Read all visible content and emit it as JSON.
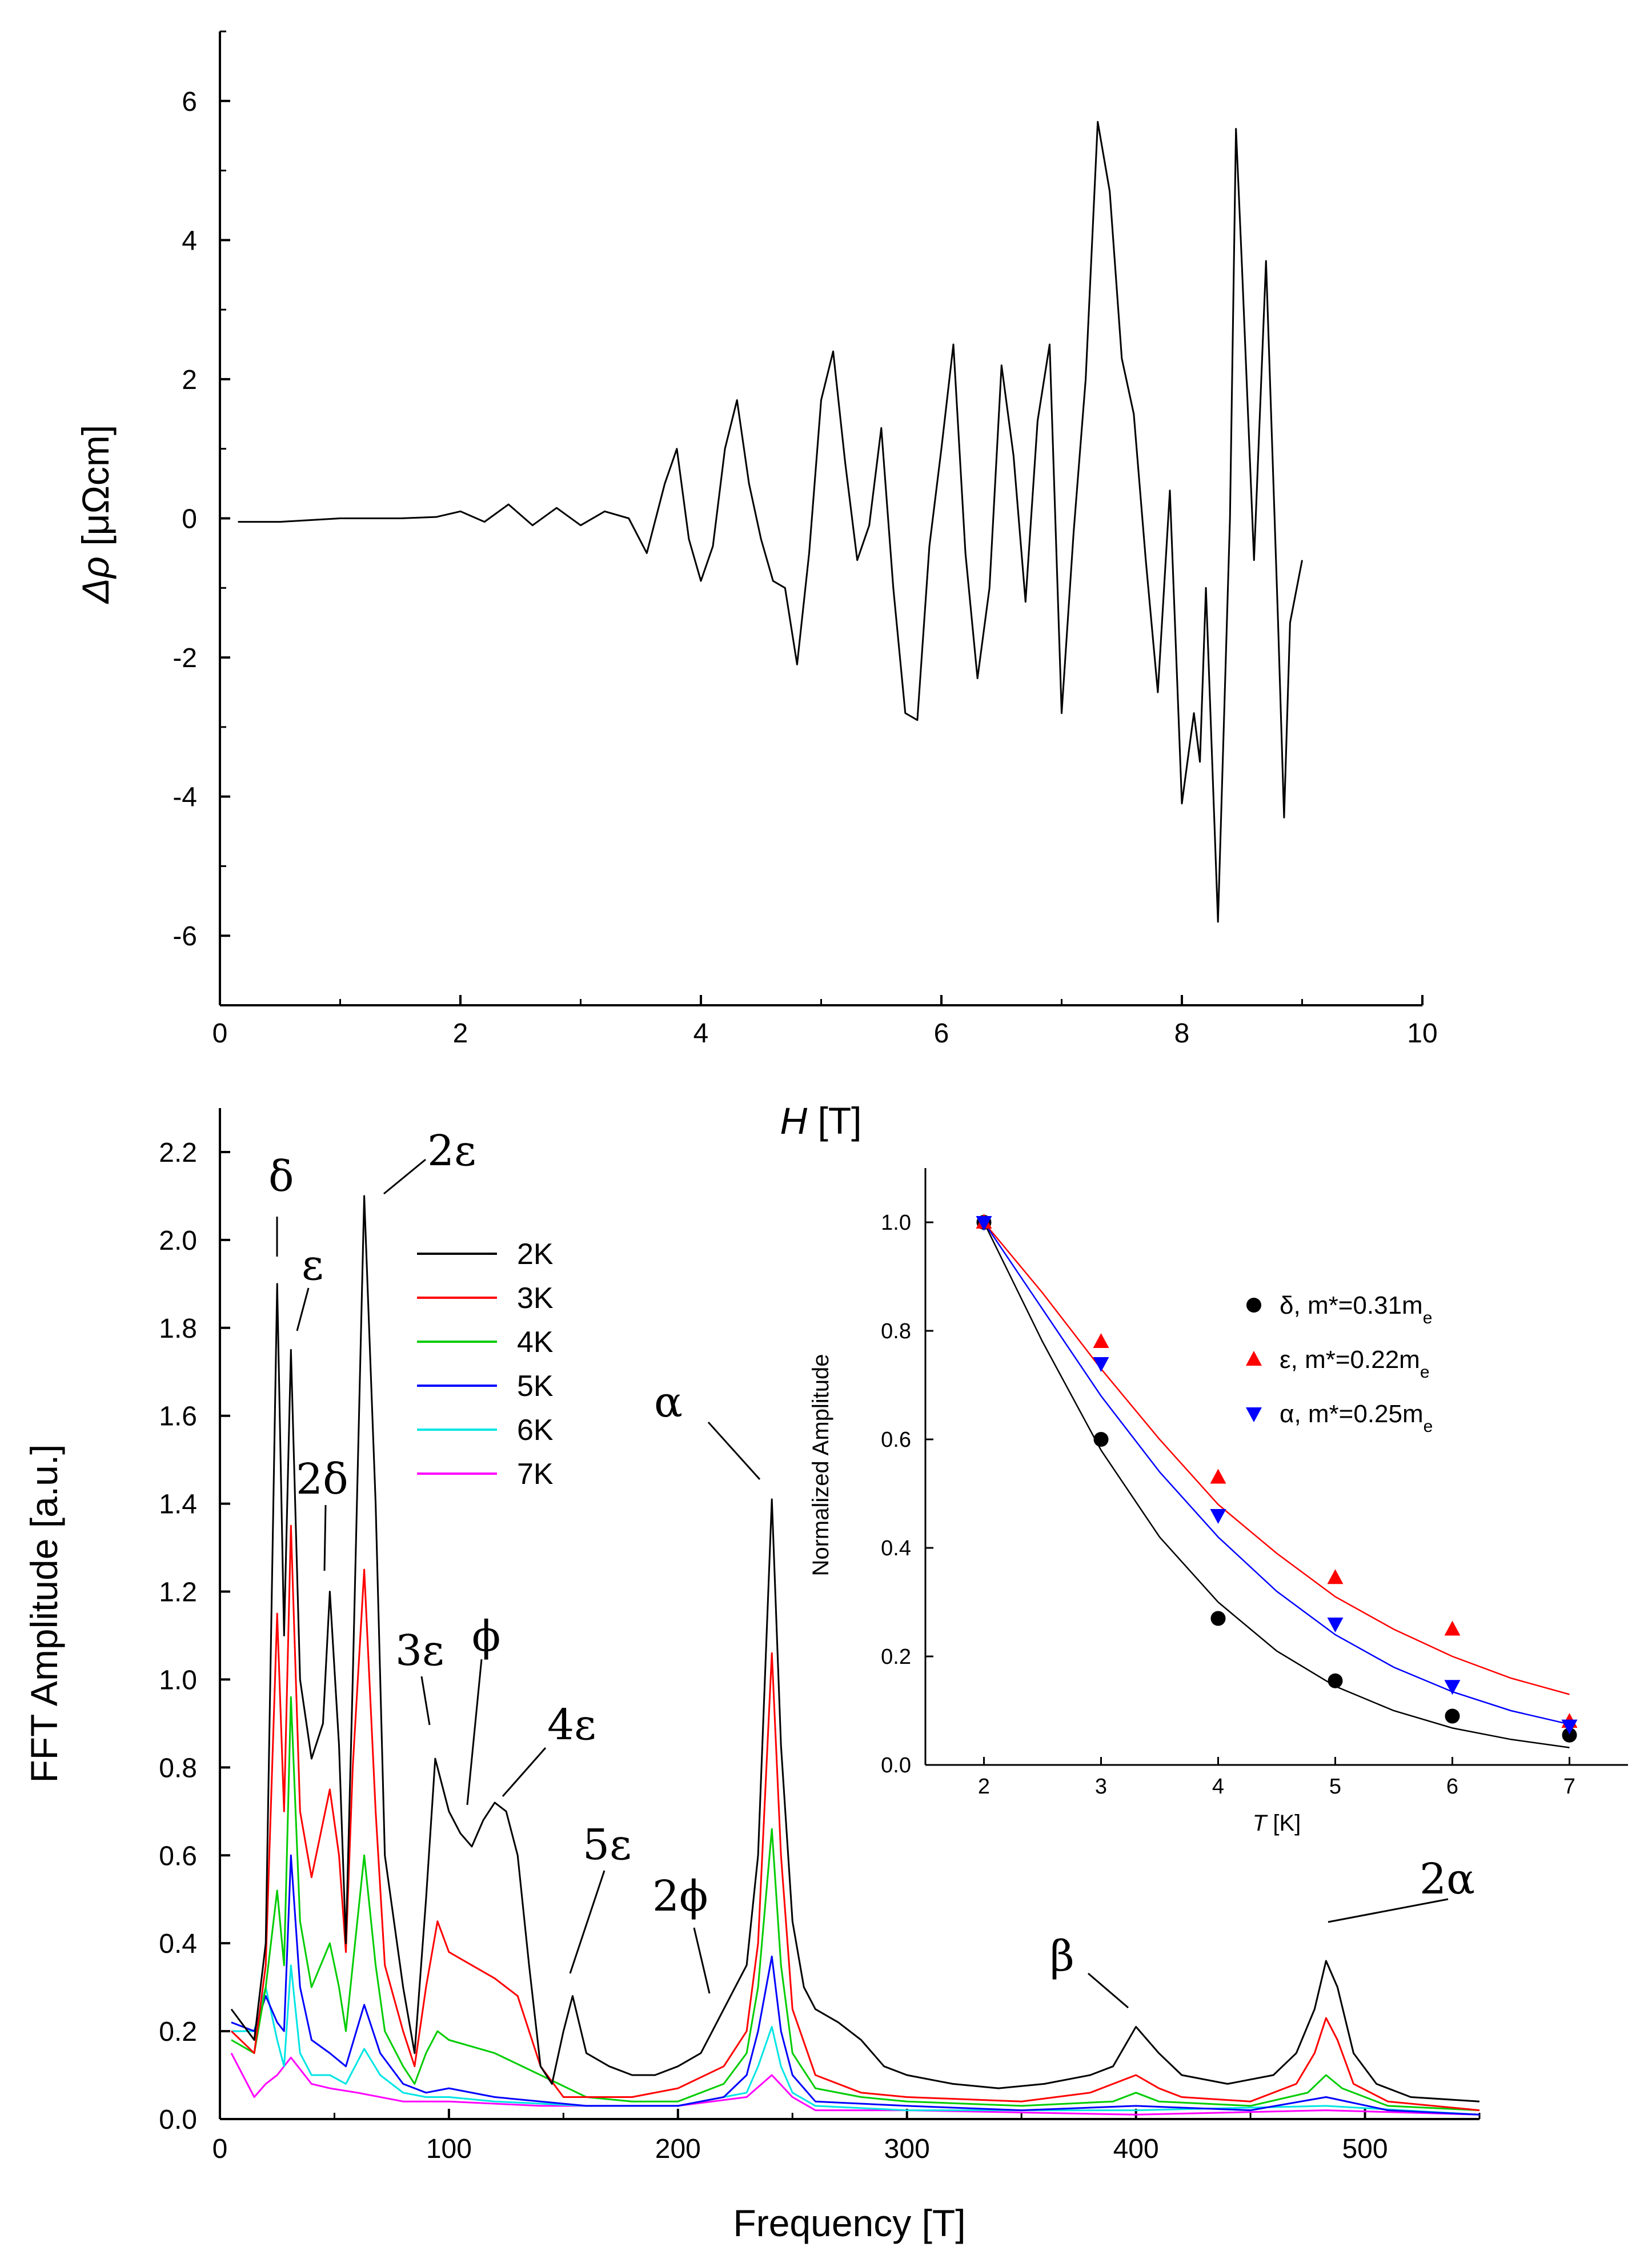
{
  "chart_data": [
    {
      "id": "top",
      "type": "line",
      "xlabel_italic": "H",
      "xlabel_unit": "[T]",
      "ylabel_symbol": "Δρ",
      "ylabel_unit": "[μΩcm]",
      "xlim": [
        0,
        10
      ],
      "ylim": [
        -7,
        7
      ],
      "xticks": [
        "0",
        "2",
        "4",
        "6",
        "8",
        "10"
      ],
      "yticks": [
        "6",
        "4",
        "2",
        "0",
        "-2",
        "-4",
        "-6"
      ],
      "series": [
        {
          "name": "Δρ(H)",
          "color": "#000000",
          "x": [
            0.15,
            0.5,
            1.0,
            1.5,
            1.8,
            2.0,
            2.2,
            2.4,
            2.6,
            2.8,
            3.0,
            3.2,
            3.4,
            3.55,
            3.7,
            3.8,
            3.9,
            4.0,
            4.1,
            4.2,
            4.3,
            4.4,
            4.5,
            4.6,
            4.7,
            4.8,
            4.9,
            5.0,
            5.1,
            5.2,
            5.3,
            5.4,
            5.5,
            5.6,
            5.7,
            5.8,
            5.9,
            6.0,
            6.1,
            6.2,
            6.3,
            6.4,
            6.5,
            6.6,
            6.7,
            6.8,
            6.9,
            7.0,
            7.1,
            7.2,
            7.3,
            7.4,
            7.5,
            7.6,
            7.7,
            7.8,
            7.9,
            8.0,
            8.1,
            8.15,
            8.2,
            8.3,
            8.4,
            8.45,
            8.5,
            8.6,
            8.7,
            8.8,
            8.85,
            8.9,
            9.0
          ],
          "y": [
            -0.05,
            -0.05,
            0.0,
            0.0,
            0.02,
            0.1,
            -0.05,
            0.2,
            -0.1,
            0.15,
            -0.1,
            0.1,
            0.0,
            -0.5,
            0.5,
            1.0,
            -0.3,
            -0.9,
            -0.4,
            1.0,
            1.7,
            0.5,
            -0.3,
            -0.9,
            -1.0,
            -2.1,
            -0.5,
            1.7,
            2.4,
            0.8,
            -0.6,
            -0.1,
            1.3,
            -1.0,
            -2.8,
            -2.9,
            -0.4,
            1.0,
            2.5,
            -0.5,
            -2.3,
            -1.0,
            2.2,
            0.9,
            -1.2,
            1.4,
            2.5,
            -2.8,
            -0.2,
            2.0,
            5.7,
            4.7,
            2.3,
            1.5,
            -0.6,
            -2.5,
            0.4,
            -4.1,
            -2.8,
            -3.5,
            -1.0,
            -5.8,
            0.0,
            5.6,
            3.6,
            -0.6,
            3.7,
            -1.5,
            -4.3,
            -1.5,
            -0.6
          ]
        }
      ]
    },
    {
      "id": "bottom",
      "type": "line",
      "xlabel": "Frequency [T]",
      "ylabel": "FFT Amplitude [a.u.]",
      "xlim": [
        0,
        550
      ],
      "ylim": [
        0,
        2.3
      ],
      "xticks": [
        "0",
        "100",
        "200",
        "300",
        "400",
        "500"
      ],
      "yticks": [
        "0.0",
        "0.2",
        "0.4",
        "0.6",
        "0.8",
        "1.0",
        "1.2",
        "1.4",
        "1.6",
        "1.8",
        "2.0",
        "2.2"
      ],
      "legend": [
        "2K",
        "3K",
        "4K",
        "5K",
        "6K",
        "7K"
      ],
      "peak_labels": [
        "δ",
        "ε",
        "2ε",
        "2δ",
        "3ε",
        "ϕ",
        "4ε",
        "5ε",
        "2ϕ",
        "α",
        "β",
        "2α"
      ],
      "peak_positions_T": [
        25,
        31,
        63,
        48,
        94,
        110,
        125,
        154,
        215,
        241,
        400,
        483
      ],
      "series": [
        {
          "name": "2K",
          "color": "#000000",
          "x": [
            5,
            15,
            20,
            25,
            28,
            31,
            35,
            40,
            45,
            48,
            52,
            55,
            58,
            63,
            68,
            72,
            80,
            85,
            90,
            94,
            100,
            105,
            110,
            115,
            120,
            125,
            130,
            135,
            140,
            145,
            150,
            154,
            160,
            170,
            180,
            190,
            200,
            210,
            215,
            220,
            225,
            230,
            235,
            241,
            245,
            250,
            255,
            260,
            270,
            280,
            290,
            300,
            320,
            340,
            360,
            380,
            390,
            400,
            410,
            420,
            440,
            460,
            470,
            478,
            483,
            488,
            495,
            505,
            520,
            550
          ],
          "y": [
            0.25,
            0.18,
            0.4,
            1.9,
            1.1,
            1.75,
            1.0,
            0.82,
            0.9,
            1.2,
            0.85,
            0.4,
            1.0,
            2.1,
            1.4,
            0.6,
            0.3,
            0.15,
            0.5,
            0.82,
            0.7,
            0.65,
            0.62,
            0.68,
            0.72,
            0.7,
            0.6,
            0.35,
            0.12,
            0.08,
            0.2,
            0.28,
            0.15,
            0.12,
            0.1,
            0.1,
            0.12,
            0.15,
            0.2,
            0.25,
            0.3,
            0.35,
            0.6,
            1.41,
            0.85,
            0.45,
            0.3,
            0.25,
            0.22,
            0.18,
            0.12,
            0.1,
            0.08,
            0.07,
            0.08,
            0.1,
            0.12,
            0.21,
            0.15,
            0.1,
            0.08,
            0.1,
            0.15,
            0.25,
            0.36,
            0.3,
            0.15,
            0.08,
            0.05,
            0.04
          ]
        },
        {
          "name": "3K",
          "color": "#ff0000",
          "x": [
            5,
            15,
            20,
            25,
            28,
            31,
            35,
            40,
            48,
            52,
            55,
            58,
            63,
            68,
            72,
            80,
            85,
            90,
            95,
            100,
            110,
            120,
            130,
            140,
            150,
            160,
            180,
            200,
            220,
            230,
            235,
            241,
            245,
            250,
            260,
            280,
            300,
            350,
            380,
            390,
            400,
            410,
            420,
            450,
            470,
            478,
            483,
            488,
            495,
            510,
            550
          ],
          "y": [
            0.2,
            0.15,
            0.35,
            1.15,
            0.7,
            1.35,
            0.7,
            0.55,
            0.75,
            0.6,
            0.38,
            0.8,
            1.25,
            0.7,
            0.35,
            0.2,
            0.12,
            0.3,
            0.45,
            0.38,
            0.35,
            0.32,
            0.28,
            0.12,
            0.05,
            0.05,
            0.05,
            0.07,
            0.12,
            0.2,
            0.4,
            1.06,
            0.6,
            0.25,
            0.1,
            0.06,
            0.05,
            0.04,
            0.06,
            0.08,
            0.1,
            0.07,
            0.05,
            0.04,
            0.08,
            0.15,
            0.23,
            0.18,
            0.08,
            0.04,
            0.02
          ]
        },
        {
          "name": "4K",
          "color": "#00cc00",
          "x": [
            5,
            15,
            20,
            25,
            28,
            31,
            35,
            40,
            48,
            52,
            55,
            58,
            63,
            68,
            72,
            80,
            85,
            90,
            95,
            100,
            120,
            140,
            160,
            180,
            200,
            220,
            230,
            235,
            241,
            245,
            250,
            260,
            280,
            300,
            350,
            390,
            400,
            410,
            450,
            475,
            483,
            490,
            510,
            550
          ],
          "y": [
            0.18,
            0.15,
            0.3,
            0.52,
            0.35,
            0.96,
            0.45,
            0.3,
            0.4,
            0.3,
            0.2,
            0.35,
            0.6,
            0.35,
            0.2,
            0.12,
            0.08,
            0.15,
            0.2,
            0.18,
            0.15,
            0.1,
            0.05,
            0.04,
            0.04,
            0.08,
            0.15,
            0.3,
            0.66,
            0.35,
            0.15,
            0.07,
            0.05,
            0.04,
            0.03,
            0.04,
            0.06,
            0.04,
            0.03,
            0.06,
            0.1,
            0.07,
            0.03,
            0.02
          ]
        },
        {
          "name": "5K",
          "color": "#0000ff",
          "x": [
            5,
            15,
            20,
            25,
            28,
            31,
            35,
            40,
            48,
            55,
            63,
            70,
            80,
            90,
            100,
            120,
            140,
            160,
            200,
            220,
            230,
            235,
            241,
            245,
            250,
            260,
            300,
            350,
            400,
            450,
            483,
            510,
            550
          ],
          "y": [
            0.22,
            0.2,
            0.28,
            0.22,
            0.2,
            0.6,
            0.3,
            0.18,
            0.15,
            0.12,
            0.26,
            0.15,
            0.08,
            0.06,
            0.07,
            0.05,
            0.04,
            0.03,
            0.03,
            0.05,
            0.1,
            0.2,
            0.37,
            0.2,
            0.1,
            0.04,
            0.03,
            0.02,
            0.03,
            0.02,
            0.05,
            0.02,
            0.01
          ]
        },
        {
          "name": "6K",
          "color": "#00e5e5",
          "x": [
            5,
            15,
            20,
            25,
            28,
            31,
            35,
            40,
            48,
            55,
            63,
            70,
            80,
            90,
            100,
            120,
            160,
            200,
            230,
            235,
            241,
            245,
            250,
            260,
            300,
            400,
            483,
            550
          ],
          "y": [
            0.2,
            0.2,
            0.3,
            0.18,
            0.12,
            0.35,
            0.15,
            0.1,
            0.1,
            0.08,
            0.16,
            0.1,
            0.06,
            0.05,
            0.05,
            0.04,
            0.03,
            0.03,
            0.06,
            0.12,
            0.21,
            0.12,
            0.06,
            0.03,
            0.02,
            0.02,
            0.03,
            0.01
          ]
        },
        {
          "name": "7K",
          "color": "#ff00ff",
          "x": [
            5,
            15,
            20,
            25,
            31,
            40,
            48,
            60,
            80,
            100,
            140,
            200,
            230,
            241,
            250,
            260,
            300,
            400,
            483,
            550
          ],
          "y": [
            0.15,
            0.05,
            0.08,
            0.1,
            0.14,
            0.08,
            0.07,
            0.06,
            0.04,
            0.04,
            0.03,
            0.03,
            0.05,
            0.1,
            0.05,
            0.02,
            0.02,
            0.01,
            0.02,
            0.01
          ]
        }
      ]
    },
    {
      "id": "inset",
      "type": "scatter",
      "xlabel_italic": "T",
      "xlabel_unit": "[K]",
      "ylabel": "Normalized Amplitude",
      "xlim": [
        1.5,
        7.5
      ],
      "ylim": [
        0,
        1.1
      ],
      "xticks": [
        "2",
        "3",
        "4",
        "5",
        "6",
        "7"
      ],
      "yticks": [
        "0.0",
        "0.2",
        "0.4",
        "0.6",
        "0.8",
        "1.0"
      ],
      "series": [
        {
          "name": "δ, m*=0.31m",
          "subscript": "e",
          "marker": "circle",
          "color": "#000000",
          "x": [
            2,
            3,
            4,
            5,
            6,
            7
          ],
          "y": [
            1.0,
            0.6,
            0.27,
            0.155,
            0.09,
            0.055
          ],
          "fit_x": [
            2,
            2.5,
            3,
            3.5,
            4,
            4.5,
            5,
            5.5,
            6,
            6.5,
            7
          ],
          "fit_y": [
            1.0,
            0.78,
            0.58,
            0.42,
            0.3,
            0.21,
            0.145,
            0.1,
            0.068,
            0.047,
            0.032
          ]
        },
        {
          "name": "ε, m*=0.22m",
          "subscript": "e",
          "marker": "triangle-up",
          "color": "#ff0000",
          "x": [
            2,
            3,
            4,
            5,
            6,
            7
          ],
          "y": [
            1.0,
            0.78,
            0.53,
            0.345,
            0.25,
            0.08
          ],
          "fit_x": [
            2,
            2.5,
            3,
            3.5,
            4,
            4.5,
            5,
            5.5,
            6,
            6.5,
            7
          ],
          "fit_y": [
            1.0,
            0.87,
            0.73,
            0.6,
            0.48,
            0.39,
            0.31,
            0.25,
            0.2,
            0.16,
            0.13
          ]
        },
        {
          "name": "α, m*=0.25m",
          "subscript": "e",
          "marker": "triangle-down",
          "color": "#0000ff",
          "x": [
            2,
            3,
            4,
            5,
            6,
            7
          ],
          "y": [
            1.0,
            0.74,
            0.46,
            0.26,
            0.145,
            0.072
          ],
          "fit_x": [
            2,
            2.5,
            3,
            3.5,
            4,
            4.5,
            5,
            5.5,
            6,
            6.5,
            7
          ],
          "fit_y": [
            1.0,
            0.84,
            0.68,
            0.54,
            0.42,
            0.32,
            0.24,
            0.18,
            0.135,
            0.1,
            0.075
          ]
        }
      ]
    }
  ]
}
